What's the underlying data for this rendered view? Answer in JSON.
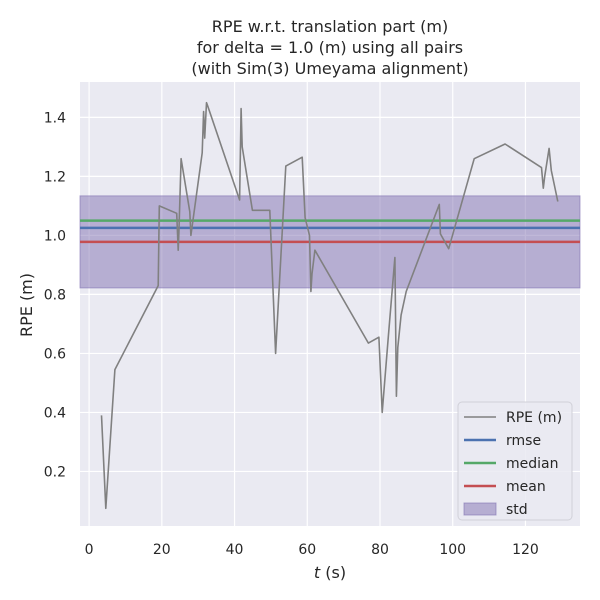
{
  "chart_data": {
    "type": "line",
    "title_lines": [
      "RPE w.r.t. translation part (m)",
      "for delta = 1.0 (m) using all pairs",
      "(with Sim(3) Umeyama alignment)"
    ],
    "xlabel_italic": "t",
    "xlabel_unit": " (s)",
    "ylabel": "RPE (m)",
    "xlim": [
      -2.5,
      135
    ],
    "ylim": [
      0.015,
      1.52
    ],
    "xticks": [
      0,
      20,
      40,
      60,
      80,
      100,
      120
    ],
    "yticks": [
      0.2,
      0.4,
      0.6,
      0.8,
      1.0,
      1.2,
      1.4
    ],
    "ytick_labels": [
      "0.2",
      "0.4",
      "0.6",
      "0.8",
      "1.0",
      "1.2",
      "1.4"
    ],
    "grid": true,
    "legend_position": "lower-right",
    "series": [
      {
        "name": "RPE (m)",
        "color": "#808080",
        "x": [
          3.4,
          4.6,
          7.1,
          19.0,
          19.3,
          24.1,
          24.5,
          24.7,
          25.3,
          27.7,
          28.0,
          31.1,
          31.5,
          31.8,
          32.3,
          32.6,
          41.4,
          41.8,
          42.1,
          44.9,
          49.7,
          51.3,
          54.1,
          58.6,
          59.4,
          60.6,
          61.0,
          61.3,
          62.1,
          76.8,
          79.7,
          80.6,
          82.3,
          84.1,
          84.5,
          84.9,
          85.8,
          87.2,
          96.3,
          96.6,
          98.9,
          105.9,
          114.4,
          124.4,
          124.9,
          125.3,
          126.5,
          127.1,
          128.9
        ],
        "y": [
          0.39,
          0.075,
          0.545,
          0.83,
          1.1,
          1.075,
          0.95,
          1.01,
          1.26,
          1.08,
          1.0,
          1.28,
          1.42,
          1.33,
          1.45,
          1.44,
          1.12,
          1.43,
          1.3,
          1.085,
          1.085,
          0.6,
          1.235,
          1.265,
          1.06,
          1.0,
          0.81,
          0.87,
          0.95,
          0.635,
          0.655,
          0.4,
          0.66,
          0.925,
          0.455,
          0.62,
          0.73,
          0.81,
          1.105,
          1.005,
          0.955,
          1.26,
          1.31,
          1.23,
          1.16,
          1.2,
          1.295,
          1.22,
          1.115
        ]
      }
    ],
    "hlines": [
      {
        "name": "rmse",
        "value": 1.0257,
        "color": "#4c72b0"
      },
      {
        "name": "median",
        "value": 1.05,
        "color": "#55a868"
      },
      {
        "name": "mean",
        "value": 0.978,
        "color": "#c44e52"
      }
    ],
    "band": {
      "name": "std",
      "low": 0.822,
      "high": 1.134,
      "color": "#8172b2"
    },
    "legend": [
      "RPE (m)",
      "rmse",
      "median",
      "mean",
      "std"
    ]
  }
}
